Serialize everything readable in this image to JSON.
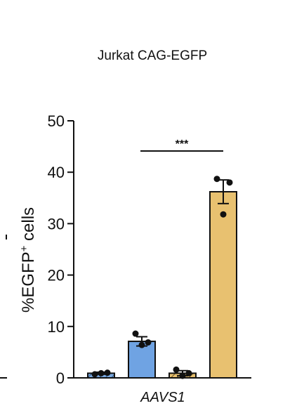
{
  "chart_data": {
    "type": "bar",
    "title": "Jurkat CAG-EGFP",
    "ylabel": "%EGFP",
    "ylabel_sup": "+",
    "ylabel_suffix": " cells",
    "xlabel": "AAVS1",
    "ylim": [
      0,
      50
    ],
    "yticks": [
      0,
      10,
      20,
      30,
      40,
      50
    ],
    "grid": false,
    "significance": "***",
    "significance_between": [
      1,
      3
    ],
    "bars": [
      {
        "value": 0.9,
        "error": 0.2,
        "color": "#7aa9e0",
        "hatched": true,
        "points": [
          0.7,
          0.9,
          1.0
        ]
      },
      {
        "value": 7.1,
        "error": 0.9,
        "color": "#6fa3e3",
        "hatched": false,
        "points": [
          8.6,
          6.4,
          6.9
        ]
      },
      {
        "value": 0.9,
        "error": 0.5,
        "color": "#e7c06f",
        "hatched": true,
        "points": [
          1.6,
          0.4,
          0.9
        ]
      },
      {
        "value": 36.2,
        "error": 2.3,
        "color": "#e8c170",
        "hatched": false,
        "points": [
          38.7,
          31.8,
          38.0
        ]
      }
    ]
  }
}
